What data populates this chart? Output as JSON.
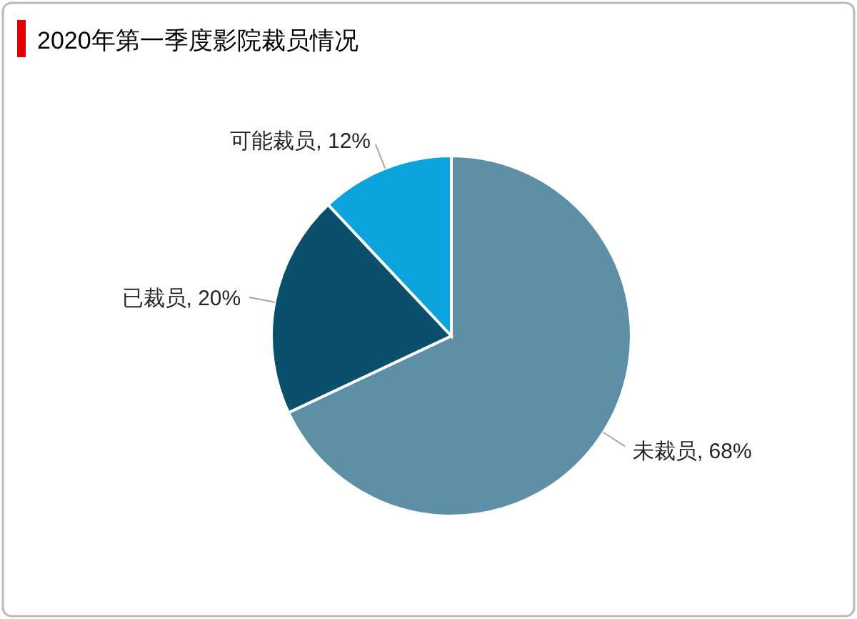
{
  "chart_data": {
    "type": "pie",
    "title": "2020年第一季度影院裁员情况",
    "categories": [
      "未裁员",
      "已裁员",
      "可能裁员"
    ],
    "values": [
      68,
      20,
      12
    ],
    "value_labels": [
      "68%",
      "20%",
      "12%"
    ],
    "colors": [
      "#5d8fa6",
      "#0b4f6c",
      "#0aa3dc"
    ]
  }
}
